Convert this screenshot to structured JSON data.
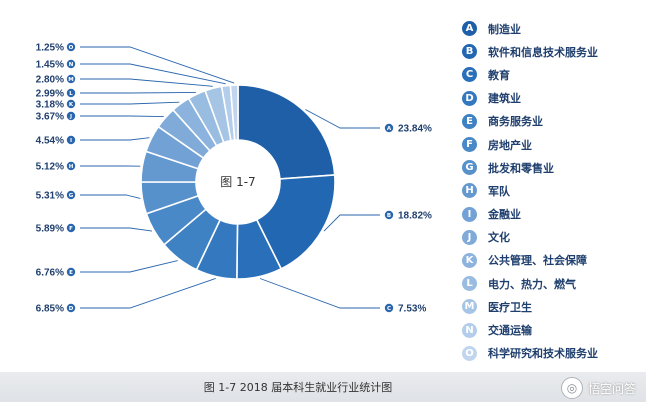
{
  "chart_data": {
    "type": "pie",
    "center_label": "图 1-7",
    "caption": "图 1-7  2018 届本科生就业行业统计图",
    "categories": [
      {
        "letter": "A",
        "name": "制造业",
        "value": 23.84,
        "color": "#1e5fa8"
      },
      {
        "letter": "B",
        "name": "软件和信息技术服务业",
        "value": 18.82,
        "color": "#2267b2"
      },
      {
        "letter": "C",
        "name": "教育",
        "value": 7.53,
        "color": "#2a6fba"
      },
      {
        "letter": "D",
        "name": "建筑业",
        "value": 6.85,
        "color": "#3479bf"
      },
      {
        "letter": "E",
        "name": "商务服务业",
        "value": 6.76,
        "color": "#3e82c4"
      },
      {
        "letter": "F",
        "name": "房地产业",
        "value": 5.89,
        "color": "#4a89c8"
      },
      {
        "letter": "G",
        "name": "批发和零售业",
        "value": 5.31,
        "color": "#5791cc"
      },
      {
        "letter": "H",
        "name": "军队",
        "value": 5.12,
        "color": "#6499d0"
      },
      {
        "letter": "I",
        "name": "金融业",
        "value": 4.54,
        "color": "#72a2d5"
      },
      {
        "letter": "J",
        "name": "文化",
        "value": 3.67,
        "color": "#80abd9"
      },
      {
        "letter": "K",
        "name": "公共管理、社会保障",
        "value": 3.18,
        "color": "#8cb3dd"
      },
      {
        "letter": "L",
        "name": "电力、热力、燃气",
        "value": 2.99,
        "color": "#99bce1"
      },
      {
        "letter": "M",
        "name": "医疗卫生",
        "value": 2.8,
        "color": "#a6c5e5"
      },
      {
        "letter": "N",
        "name": "交通运输",
        "value": 1.45,
        "color": "#b3cdea"
      },
      {
        "letter": "O",
        "name": "科学研究和技术服务业",
        "value": 1.25,
        "color": "#c1d6ee"
      }
    ],
    "value_labels": [
      "23.84%",
      "18.82%",
      "7.53%",
      "6.85%",
      "6.76%",
      "5.89%",
      "5.31%",
      "5.12%",
      "4.54%",
      "3.67%",
      "3.18%",
      "2.99%",
      "2.80%",
      "1.45%",
      "1.25%"
    ],
    "legend_position": "right"
  },
  "watermark": {
    "text": "悟空问答",
    "icon": "wukong-logo-icon"
  }
}
